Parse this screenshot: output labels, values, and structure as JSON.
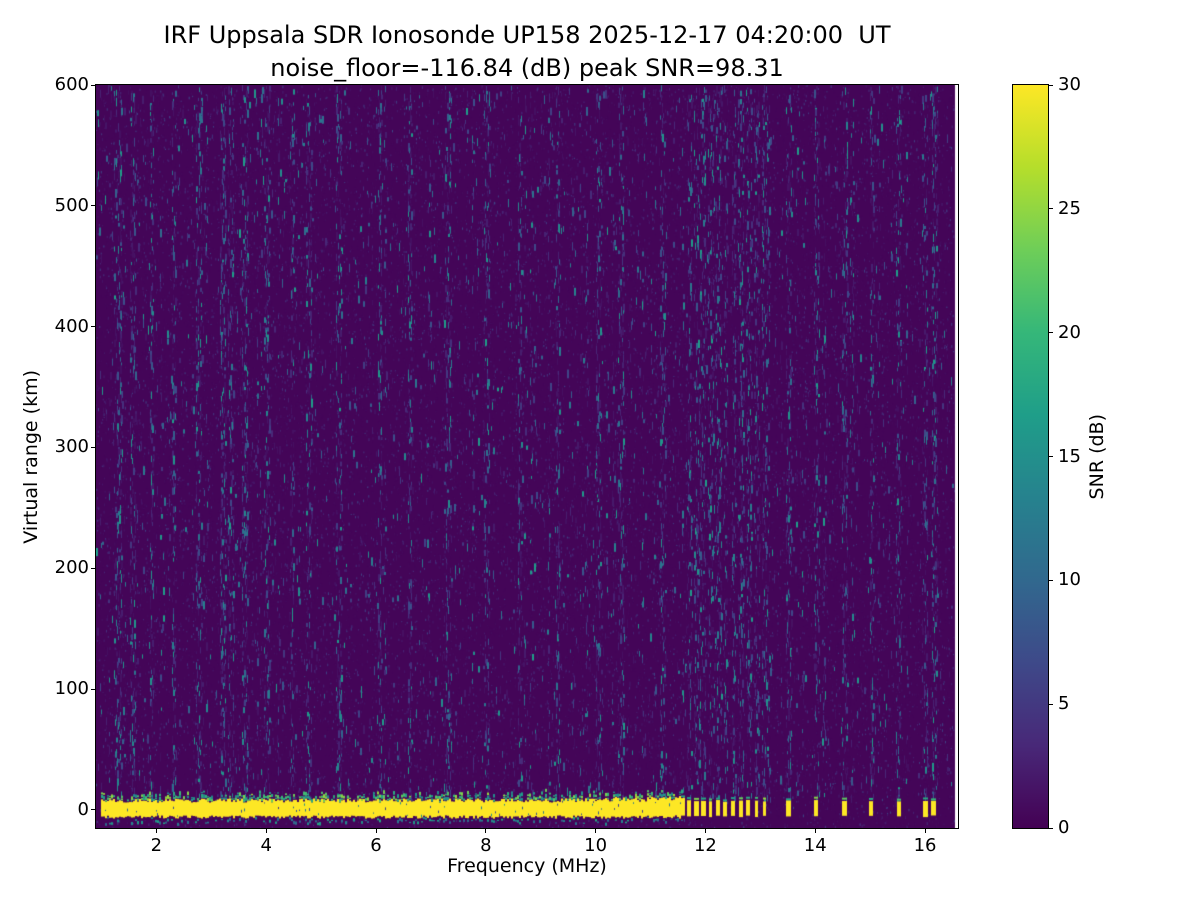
{
  "figure": {
    "background": "#ffffff"
  },
  "chart_data": {
    "type": "heatmap",
    "title": "IRF Uppsala SDR Ionosonde UP158 2025-12-17 04:20:00  UT",
    "subtitle": "noise_floor=-116.84 (dB) peak SNR=98.31",
    "noise_floor_db": -116.84,
    "peak_snr_db": 98.31,
    "xlabel": "Frequency (MHz)",
    "ylabel": "Virtual range (km)",
    "xlim": [
      0.9,
      16.6
    ],
    "ylim": [
      -15,
      600
    ],
    "xticks": [
      2,
      4,
      6,
      8,
      10,
      12,
      14,
      16
    ],
    "yticks": [
      0,
      100,
      200,
      300,
      400,
      500,
      600
    ],
    "grid": false,
    "colorbar": {
      "label": "SNR (dB)",
      "min": 0,
      "max": 30,
      "ticks": [
        0,
        5,
        10,
        15,
        20,
        25,
        30
      ],
      "colormap": "viridis",
      "stops": [
        "#440154",
        "#482878",
        "#3e4989",
        "#31688e",
        "#26828e",
        "#1f9e89",
        "#35b779",
        "#6ece58",
        "#b5de2b",
        "#fde725"
      ]
    },
    "features": {
      "background_snr_db": 0.5,
      "ground_echo": {
        "range_km": [
          -6,
          8
        ],
        "freq_start_mhz": 1.0,
        "freq_end_mhz": 11.6,
        "snr_db": 30
      },
      "pulse_freqs_mhz": [
        11.7,
        11.82,
        11.95,
        12.08,
        12.22,
        12.36,
        12.5,
        12.64,
        12.78,
        12.92,
        13.06,
        13.5,
        14.02,
        14.52,
        15.02,
        15.52,
        16.0,
        16.15
      ],
      "rfi_stripe_freqs_mhz": [
        1.3,
        1.55,
        1.9,
        2.3,
        2.75,
        3.2,
        3.35,
        3.6,
        4.0,
        4.45,
        4.75,
        5.3,
        6.05,
        6.6,
        7.3,
        8.0,
        8.6,
        9.3,
        10.05,
        10.45,
        11.2
      ],
      "noise_speckle_snr_db_max": 16,
      "seed": 42
    }
  }
}
